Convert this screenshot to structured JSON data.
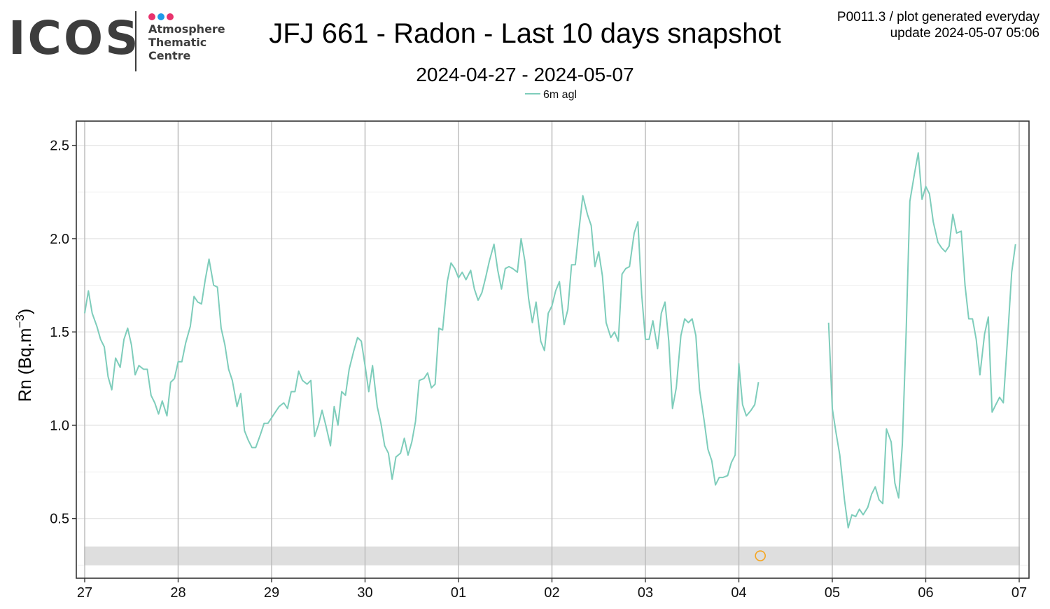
{
  "logo": {
    "word": "ICOS",
    "lines": [
      "Atmosphere",
      "Thematic",
      "Centre"
    ],
    "dot_colors": [
      "#e8336d",
      "#1e9be9",
      "#e8336d"
    ],
    "text_color": "#3d3d3d"
  },
  "header": {
    "title": "JFJ 661 - Radon - Last 10 days snapshot",
    "subtitle": "2024-04-27 - 2024-05-07",
    "info_line1": "P0011.3 / plot generated everyday",
    "info_line2": "update  2024-05-07 05:06"
  },
  "chart_data": {
    "type": "line",
    "title": "JFJ 661 - Radon - Last 10 days snapshot",
    "subtitle": "2024-04-27 - 2024-05-07",
    "ylabel": "Rn (Bq.m⁻³)",
    "ylabel_parts": {
      "base": "Rn (Bq.m",
      "sup": "−3",
      "end": ")"
    },
    "xlabel": "",
    "x_unit": "day",
    "xlim": [
      0,
      10
    ],
    "ylim": [
      0.18,
      2.63
    ],
    "x_ticks": [
      0,
      1,
      2,
      3,
      4,
      5,
      6,
      7,
      8,
      9,
      10
    ],
    "x_tick_labels": [
      "27",
      "28",
      "29",
      "30",
      "01",
      "02",
      "03",
      "04",
      "05",
      "06",
      "07"
    ],
    "y_ticks": [
      0.5,
      1.0,
      1.5,
      2.0,
      2.5
    ],
    "y_tick_labels": [
      "0.5",
      "1.0",
      "1.5",
      "2.0",
      "2.5"
    ],
    "grid": true,
    "legend_position": "top-center",
    "line_color": "#7ecdbb",
    "flag_band": {
      "y_range": [
        0.25,
        0.35
      ],
      "color": "#dcdcdc"
    },
    "flag_marker": {
      "x": 7.23,
      "y": 0.3,
      "color": "#f5a623"
    },
    "series": [
      {
        "name": "6m agl",
        "segments": [
          [
            [
              0.0,
              1.6
            ],
            [
              0.04,
              1.72
            ],
            [
              0.08,
              1.6
            ],
            [
              0.13,
              1.53
            ],
            [
              0.17,
              1.46
            ],
            [
              0.21,
              1.42
            ],
            [
              0.25,
              1.26
            ],
            [
              0.29,
              1.19
            ],
            [
              0.33,
              1.36
            ],
            [
              0.38,
              1.31
            ],
            [
              0.42,
              1.46
            ],
            [
              0.46,
              1.52
            ],
            [
              0.5,
              1.43
            ],
            [
              0.54,
              1.27
            ],
            [
              0.58,
              1.32
            ],
            [
              0.63,
              1.3
            ],
            [
              0.67,
              1.3
            ],
            [
              0.71,
              1.16
            ],
            [
              0.75,
              1.12
            ],
            [
              0.79,
              1.06
            ],
            [
              0.83,
              1.13
            ],
            [
              0.88,
              1.05
            ],
            [
              0.92,
              1.23
            ],
            [
              0.96,
              1.25
            ],
            [
              1.0,
              1.34
            ],
            [
              1.04,
              1.34
            ],
            [
              1.08,
              1.44
            ],
            [
              1.13,
              1.53
            ],
            [
              1.17,
              1.69
            ],
            [
              1.21,
              1.66
            ],
            [
              1.25,
              1.65
            ],
            [
              1.29,
              1.78
            ],
            [
              1.33,
              1.89
            ],
            [
              1.38,
              1.75
            ],
            [
              1.42,
              1.74
            ],
            [
              1.46,
              1.52
            ],
            [
              1.5,
              1.43
            ],
            [
              1.54,
              1.3
            ],
            [
              1.58,
              1.24
            ],
            [
              1.63,
              1.1
            ],
            [
              1.67,
              1.17
            ],
            [
              1.71,
              0.97
            ],
            [
              1.75,
              0.92
            ],
            [
              1.79,
              0.88
            ],
            [
              1.83,
              0.88
            ],
            [
              1.88,
              0.95
            ],
            [
              1.92,
              1.01
            ],
            [
              1.96,
              1.01
            ],
            [
              2.0,
              1.04
            ],
            [
              2.04,
              1.07
            ],
            [
              2.08,
              1.1
            ],
            [
              2.13,
              1.12
            ],
            [
              2.17,
              1.09
            ],
            [
              2.21,
              1.18
            ],
            [
              2.25,
              1.18
            ],
            [
              2.29,
              1.29
            ],
            [
              2.33,
              1.24
            ],
            [
              2.38,
              1.22
            ],
            [
              2.42,
              1.24
            ],
            [
              2.46,
              0.94
            ],
            [
              2.5,
              1.0
            ],
            [
              2.54,
              1.08
            ],
            [
              2.58,
              1.0
            ],
            [
              2.63,
              0.89
            ],
            [
              2.67,
              1.1
            ],
            [
              2.71,
              1.0
            ],
            [
              2.75,
              1.18
            ],
            [
              2.79,
              1.16
            ],
            [
              2.83,
              1.3
            ],
            [
              2.88,
              1.4
            ],
            [
              2.92,
              1.47
            ],
            [
              2.96,
              1.45
            ],
            [
              3.0,
              1.32
            ],
            [
              3.04,
              1.18
            ],
            [
              3.08,
              1.32
            ],
            [
              3.13,
              1.1
            ],
            [
              3.17,
              1.01
            ],
            [
              3.21,
              0.89
            ],
            [
              3.25,
              0.85
            ],
            [
              3.29,
              0.71
            ],
            [
              3.33,
              0.83
            ],
            [
              3.38,
              0.85
            ],
            [
              3.42,
              0.93
            ],
            [
              3.46,
              0.84
            ],
            [
              3.5,
              0.91
            ],
            [
              3.54,
              1.02
            ],
            [
              3.58,
              1.24
            ],
            [
              3.63,
              1.25
            ],
            [
              3.67,
              1.28
            ],
            [
              3.71,
              1.2
            ],
            [
              3.75,
              1.22
            ],
            [
              3.79,
              1.52
            ],
            [
              3.83,
              1.51
            ],
            [
              3.88,
              1.77
            ],
            [
              3.92,
              1.87
            ],
            [
              3.96,
              1.84
            ],
            [
              4.0,
              1.79
            ],
            [
              4.04,
              1.82
            ],
            [
              4.08,
              1.78
            ],
            [
              4.13,
              1.83
            ],
            [
              4.17,
              1.73
            ],
            [
              4.21,
              1.67
            ],
            [
              4.25,
              1.71
            ],
            [
              4.29,
              1.79
            ],
            [
              4.33,
              1.88
            ],
            [
              4.38,
              1.97
            ],
            [
              4.42,
              1.83
            ],
            [
              4.46,
              1.73
            ],
            [
              4.5,
              1.84
            ],
            [
              4.54,
              1.85
            ],
            [
              4.58,
              1.84
            ],
            [
              4.63,
              1.82
            ],
            [
              4.67,
              2.0
            ],
            [
              4.71,
              1.88
            ],
            [
              4.75,
              1.68
            ],
            [
              4.79,
              1.55
            ],
            [
              4.83,
              1.66
            ],
            [
              4.88,
              1.45
            ],
            [
              4.92,
              1.4
            ],
            [
              4.96,
              1.6
            ],
            [
              5.0,
              1.64
            ],
            [
              5.04,
              1.72
            ],
            [
              5.08,
              1.77
            ],
            [
              5.13,
              1.54
            ],
            [
              5.17,
              1.62
            ],
            [
              5.21,
              1.86
            ],
            [
              5.25,
              1.86
            ],
            [
              5.29,
              2.05
            ],
            [
              5.33,
              2.23
            ],
            [
              5.38,
              2.13
            ],
            [
              5.42,
              2.07
            ],
            [
              5.46,
              1.85
            ],
            [
              5.5,
              1.93
            ],
            [
              5.54,
              1.8
            ],
            [
              5.58,
              1.55
            ],
            [
              5.63,
              1.47
            ],
            [
              5.67,
              1.5
            ],
            [
              5.71,
              1.45
            ],
            [
              5.75,
              1.81
            ],
            [
              5.79,
              1.84
            ],
            [
              5.83,
              1.85
            ],
            [
              5.88,
              2.03
            ],
            [
              5.92,
              2.09
            ],
            [
              5.96,
              1.7
            ],
            [
              6.0,
              1.46
            ],
            [
              6.04,
              1.46
            ],
            [
              6.08,
              1.56
            ],
            [
              6.13,
              1.41
            ],
            [
              6.17,
              1.6
            ],
            [
              6.21,
              1.66
            ],
            [
              6.25,
              1.45
            ],
            [
              6.29,
              1.09
            ],
            [
              6.33,
              1.2
            ],
            [
              6.38,
              1.48
            ],
            [
              6.42,
              1.57
            ],
            [
              6.46,
              1.55
            ],
            [
              6.5,
              1.57
            ],
            [
              6.54,
              1.48
            ],
            [
              6.58,
              1.19
            ],
            [
              6.63,
              1.02
            ],
            [
              6.67,
              0.87
            ],
            [
              6.71,
              0.81
            ],
            [
              6.75,
              0.68
            ],
            [
              6.79,
              0.72
            ],
            [
              6.83,
              0.72
            ],
            [
              6.88,
              0.73
            ],
            [
              6.92,
              0.8
            ],
            [
              6.96,
              0.84
            ],
            [
              7.0,
              1.33
            ],
            [
              7.04,
              1.11
            ],
            [
              7.08,
              1.05
            ],
            [
              7.13,
              1.08
            ],
            [
              7.17,
              1.11
            ],
            [
              7.21,
              1.23
            ]
          ],
          [
            [
              7.96,
              1.55
            ],
            [
              8.0,
              1.09
            ],
            [
              8.04,
              0.96
            ],
            [
              8.08,
              0.84
            ],
            [
              8.13,
              0.6
            ],
            [
              8.17,
              0.45
            ],
            [
              8.21,
              0.52
            ],
            [
              8.25,
              0.51
            ],
            [
              8.29,
              0.55
            ],
            [
              8.33,
              0.52
            ],
            [
              8.38,
              0.56
            ],
            [
              8.42,
              0.63
            ],
            [
              8.46,
              0.67
            ],
            [
              8.5,
              0.6
            ],
            [
              8.54,
              0.58
            ],
            [
              8.58,
              0.98
            ],
            [
              8.63,
              0.91
            ],
            [
              8.67,
              0.69
            ],
            [
              8.71,
              0.61
            ],
            [
              8.75,
              0.9
            ],
            [
              8.79,
              1.5
            ],
            [
              8.83,
              2.2
            ],
            [
              8.88,
              2.35
            ],
            [
              8.92,
              2.46
            ],
            [
              8.96,
              2.21
            ],
            [
              9.0,
              2.28
            ],
            [
              9.04,
              2.24
            ],
            [
              9.08,
              2.09
            ],
            [
              9.13,
              1.98
            ],
            [
              9.17,
              1.95
            ],
            [
              9.21,
              1.93
            ],
            [
              9.25,
              1.96
            ],
            [
              9.29,
              2.13
            ],
            [
              9.33,
              2.03
            ],
            [
              9.38,
              2.04
            ],
            [
              9.42,
              1.75
            ],
            [
              9.46,
              1.57
            ],
            [
              9.5,
              1.57
            ],
            [
              9.54,
              1.46
            ],
            [
              9.58,
              1.27
            ],
            [
              9.63,
              1.49
            ],
            [
              9.67,
              1.58
            ],
            [
              9.71,
              1.07
            ],
            [
              9.75,
              1.11
            ],
            [
              9.79,
              1.15
            ],
            [
              9.83,
              1.12
            ],
            [
              9.88,
              1.5
            ],
            [
              9.92,
              1.82
            ],
            [
              9.96,
              1.97
            ]
          ]
        ]
      }
    ]
  }
}
